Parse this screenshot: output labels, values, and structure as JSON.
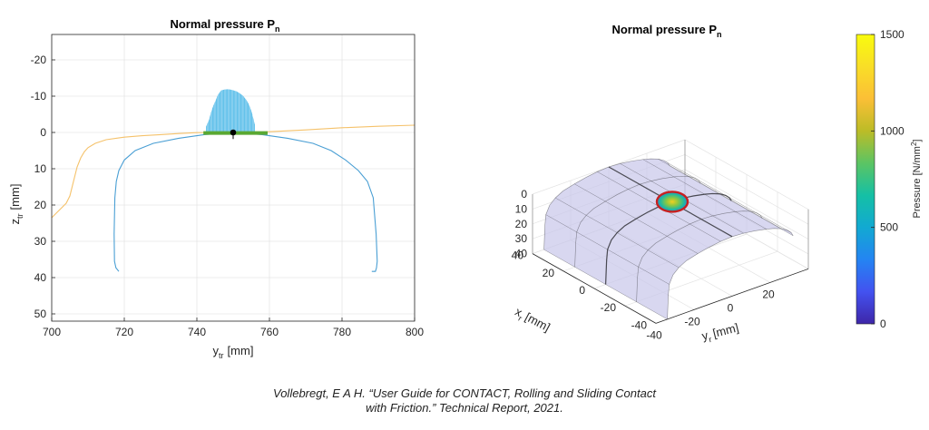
{
  "chart_data": [
    {
      "type": "line",
      "title": "Normal pressure P",
      "title_sub": "n",
      "xlabel": "y",
      "xlabel_sub": "tr",
      "xlabel_unit": "[mm]",
      "ylabel": "z",
      "ylabel_sub": "tr",
      "ylabel_unit": "[mm]",
      "xlim": [
        700,
        800
      ],
      "ylim": [
        -27,
        52
      ],
      "y_reversed": true,
      "grid": true,
      "xticks": [
        "700",
        "720",
        "740",
        "760",
        "780",
        "800"
      ],
      "yticks": [
        "-20",
        "-10",
        "0",
        "10",
        "20",
        "30",
        "40",
        "50"
      ],
      "series": [
        {
          "role": "rail_profile",
          "color": "#f5c26b",
          "x": [
            700,
            702,
            704,
            705,
            706,
            707,
            708,
            709,
            710,
            712,
            715,
            720,
            725,
            730,
            735,
            740,
            745,
            750,
            755,
            760,
            770,
            780,
            790,
            800
          ],
          "y": [
            23.5,
            21.5,
            19.5,
            17.5,
            13.5,
            9.5,
            7.0,
            5.3,
            4.2,
            3.0,
            2.0,
            1.3,
            0.9,
            0.6,
            0.3,
            0.05,
            0,
            0,
            0,
            -0.2,
            -0.7,
            -1.3,
            -1.7,
            -2.0
          ]
        },
        {
          "role": "wheel_profile",
          "color": "#4a9fd4",
          "x": [
            718.5,
            717.7,
            717.3,
            717.2,
            717.4,
            717.8,
            718.5,
            720,
            723,
            728,
            735,
            742,
            750,
            758,
            765,
            772,
            777,
            781,
            784.5,
            787,
            788.6,
            789.4,
            789.7,
            789.5,
            789.2,
            788.2
          ],
          "y": [
            38.3,
            37.3,
            35.5,
            28.0,
            18.0,
            13.5,
            10.5,
            7.6,
            5.0,
            3.0,
            1.6,
            0.6,
            0,
            0.6,
            1.6,
            3.0,
            5.0,
            7.6,
            10.5,
            13.5,
            18.0,
            28.0,
            35.5,
            37.3,
            38.3,
            38.3
          ]
        }
      ],
      "pressure_fill": {
        "color": "#4db8e8",
        "x_range": [
          742.5,
          756.0
        ],
        "y_max": [
          -1.5,
          -3.5,
          -6.5,
          -8.5,
          -10.5,
          -11.6,
          -11.8,
          -11.9,
          -11.8,
          -11.6,
          -11.3,
          -10.8,
          -10.2,
          -9.2,
          -7.8,
          -5.5,
          -2.0
        ]
      },
      "contact_segment": {
        "color": "#5aa832",
        "x": [
          741.8,
          759.5
        ],
        "y": 0.15
      },
      "contact_point": {
        "color": "#000000",
        "x": 750,
        "y": 0.0,
        "marker_tick_y": 1.8
      }
    },
    {
      "type": "surface3d",
      "title": "Normal pressure P",
      "title_sub": "n",
      "xlabel": "x",
      "xlabel_sub": "r",
      "xlabel_unit": "[mm]",
      "ylabel": "y",
      "ylabel_sub": "r",
      "ylabel_unit": "[mm]",
      "xlim": [
        -40,
        40
      ],
      "ylim": [
        -40,
        40
      ],
      "zlim": [
        0,
        40
      ],
      "z_reversed": true,
      "grid": true,
      "xticks": [
        "40",
        "20",
        "0",
        "-20",
        "-40"
      ],
      "yticks": [
        "-40",
        "-20",
        "0",
        "20"
      ],
      "zticks": [
        "0",
        "10",
        "20",
        "30",
        "40"
      ],
      "surface_color": "#c8c6ea",
      "surface_line_color": "#3a3a40",
      "pressure_patch": {
        "center": [
          0,
          0
        ],
        "edge_color": "#c62020"
      },
      "colorbar": {
        "label": "Pressure [N/mm",
        "label_sup": "2",
        "label_close": "]",
        "range": [
          0,
          1500
        ],
        "ticks": [
          "0",
          "500",
          "1000",
          "1500"
        ],
        "colormap": [
          "#3e26a8",
          "#4352f0",
          "#2484f2",
          "#12a9d2",
          "#15c0a5",
          "#5cc463",
          "#bcbc27",
          "#fbbf36",
          "#f9de27",
          "#f9fb0e"
        ]
      }
    }
  ],
  "caption": {
    "line1": "Vollebregt, E A H. “User Guide for CONTACT, Rolling and Sliding Contact",
    "line2": "with Friction.” Technical Report, 2021."
  }
}
